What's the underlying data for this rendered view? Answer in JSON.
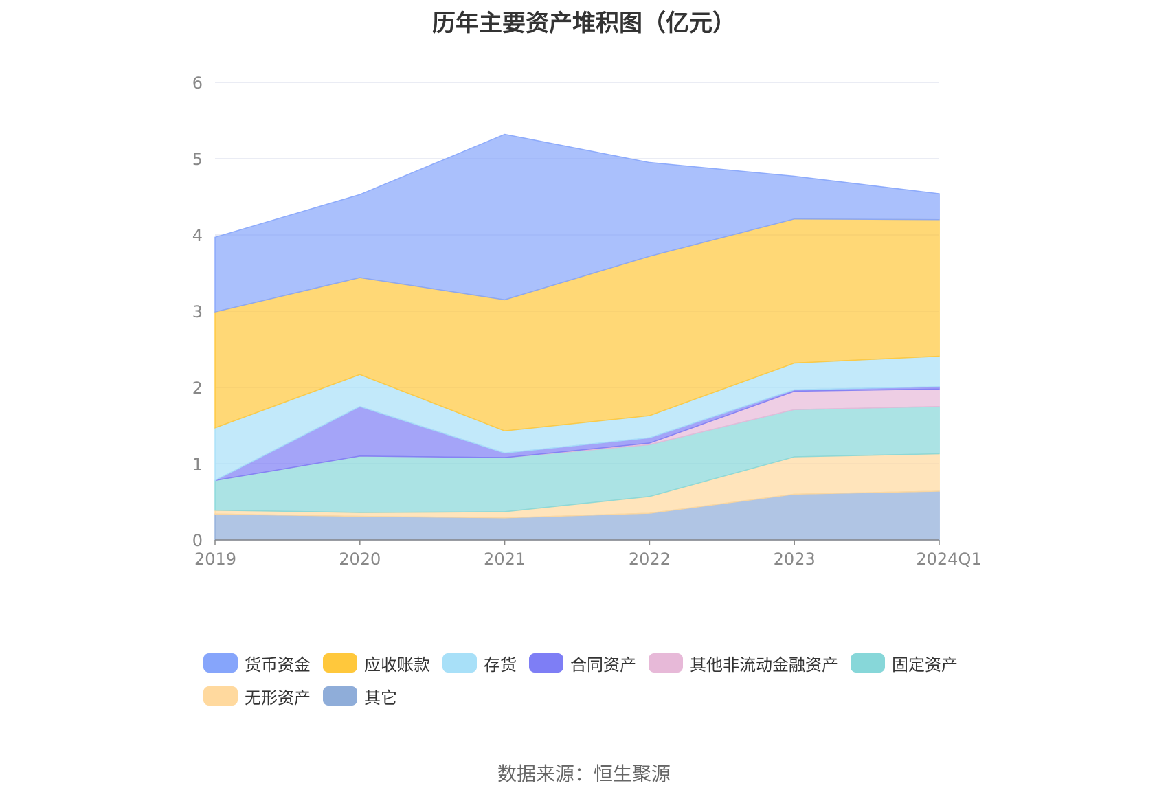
{
  "chart_data": {
    "type": "area",
    "stacked": true,
    "title": "历年主要资产堆积图（亿元）",
    "categories": [
      "2019",
      "2020",
      "2021",
      "2022",
      "2023",
      "2024Q1"
    ],
    "ylim": [
      0,
      6
    ],
    "yticks": [
      0,
      1,
      2,
      3,
      4,
      5,
      6
    ],
    "grid": true,
    "legend_position": "bottom",
    "series": [
      {
        "name": "其它",
        "color": "#8fadd9",
        "values": [
          0.34,
          0.31,
          0.29,
          0.35,
          0.6,
          0.64
        ]
      },
      {
        "name": "无形资产",
        "color": "#ffd99e",
        "values": [
          0.05,
          0.05,
          0.08,
          0.22,
          0.49,
          0.49
        ]
      },
      {
        "name": "固定资产",
        "color": "#87d7d9",
        "values": [
          0.39,
          0.74,
          0.71,
          0.68,
          0.62,
          0.62
        ]
      },
      {
        "name": "其他非流动金融资产",
        "color": "#e7b9d8",
        "values": [
          0,
          0,
          0,
          0.02,
          0.24,
          0.23
        ]
      },
      {
        "name": "合同资产",
        "color": "#7e7ef5",
        "values": [
          0,
          0.65,
          0.06,
          0.07,
          0.02,
          0.03
        ]
      },
      {
        "name": "存货",
        "color": "#a8e0f8",
        "values": [
          0.69,
          0.42,
          0.29,
          0.29,
          0.35,
          0.4
        ]
      },
      {
        "name": "应收账款",
        "color": "#ffc83c",
        "values": [
          1.52,
          1.27,
          1.72,
          2.09,
          1.89,
          1.79
        ]
      },
      {
        "name": "货币资金",
        "color": "#86a5fb",
        "values": [
          0.98,
          1.09,
          2.17,
          1.23,
          0.56,
          0.34
        ]
      }
    ],
    "legend_order": [
      "货币资金",
      "应收账款",
      "存货",
      "合同资产",
      "其他非流动金融资产",
      "固定资产",
      "无形资产",
      "其它"
    ]
  },
  "source_text": "数据来源：恒生聚源"
}
